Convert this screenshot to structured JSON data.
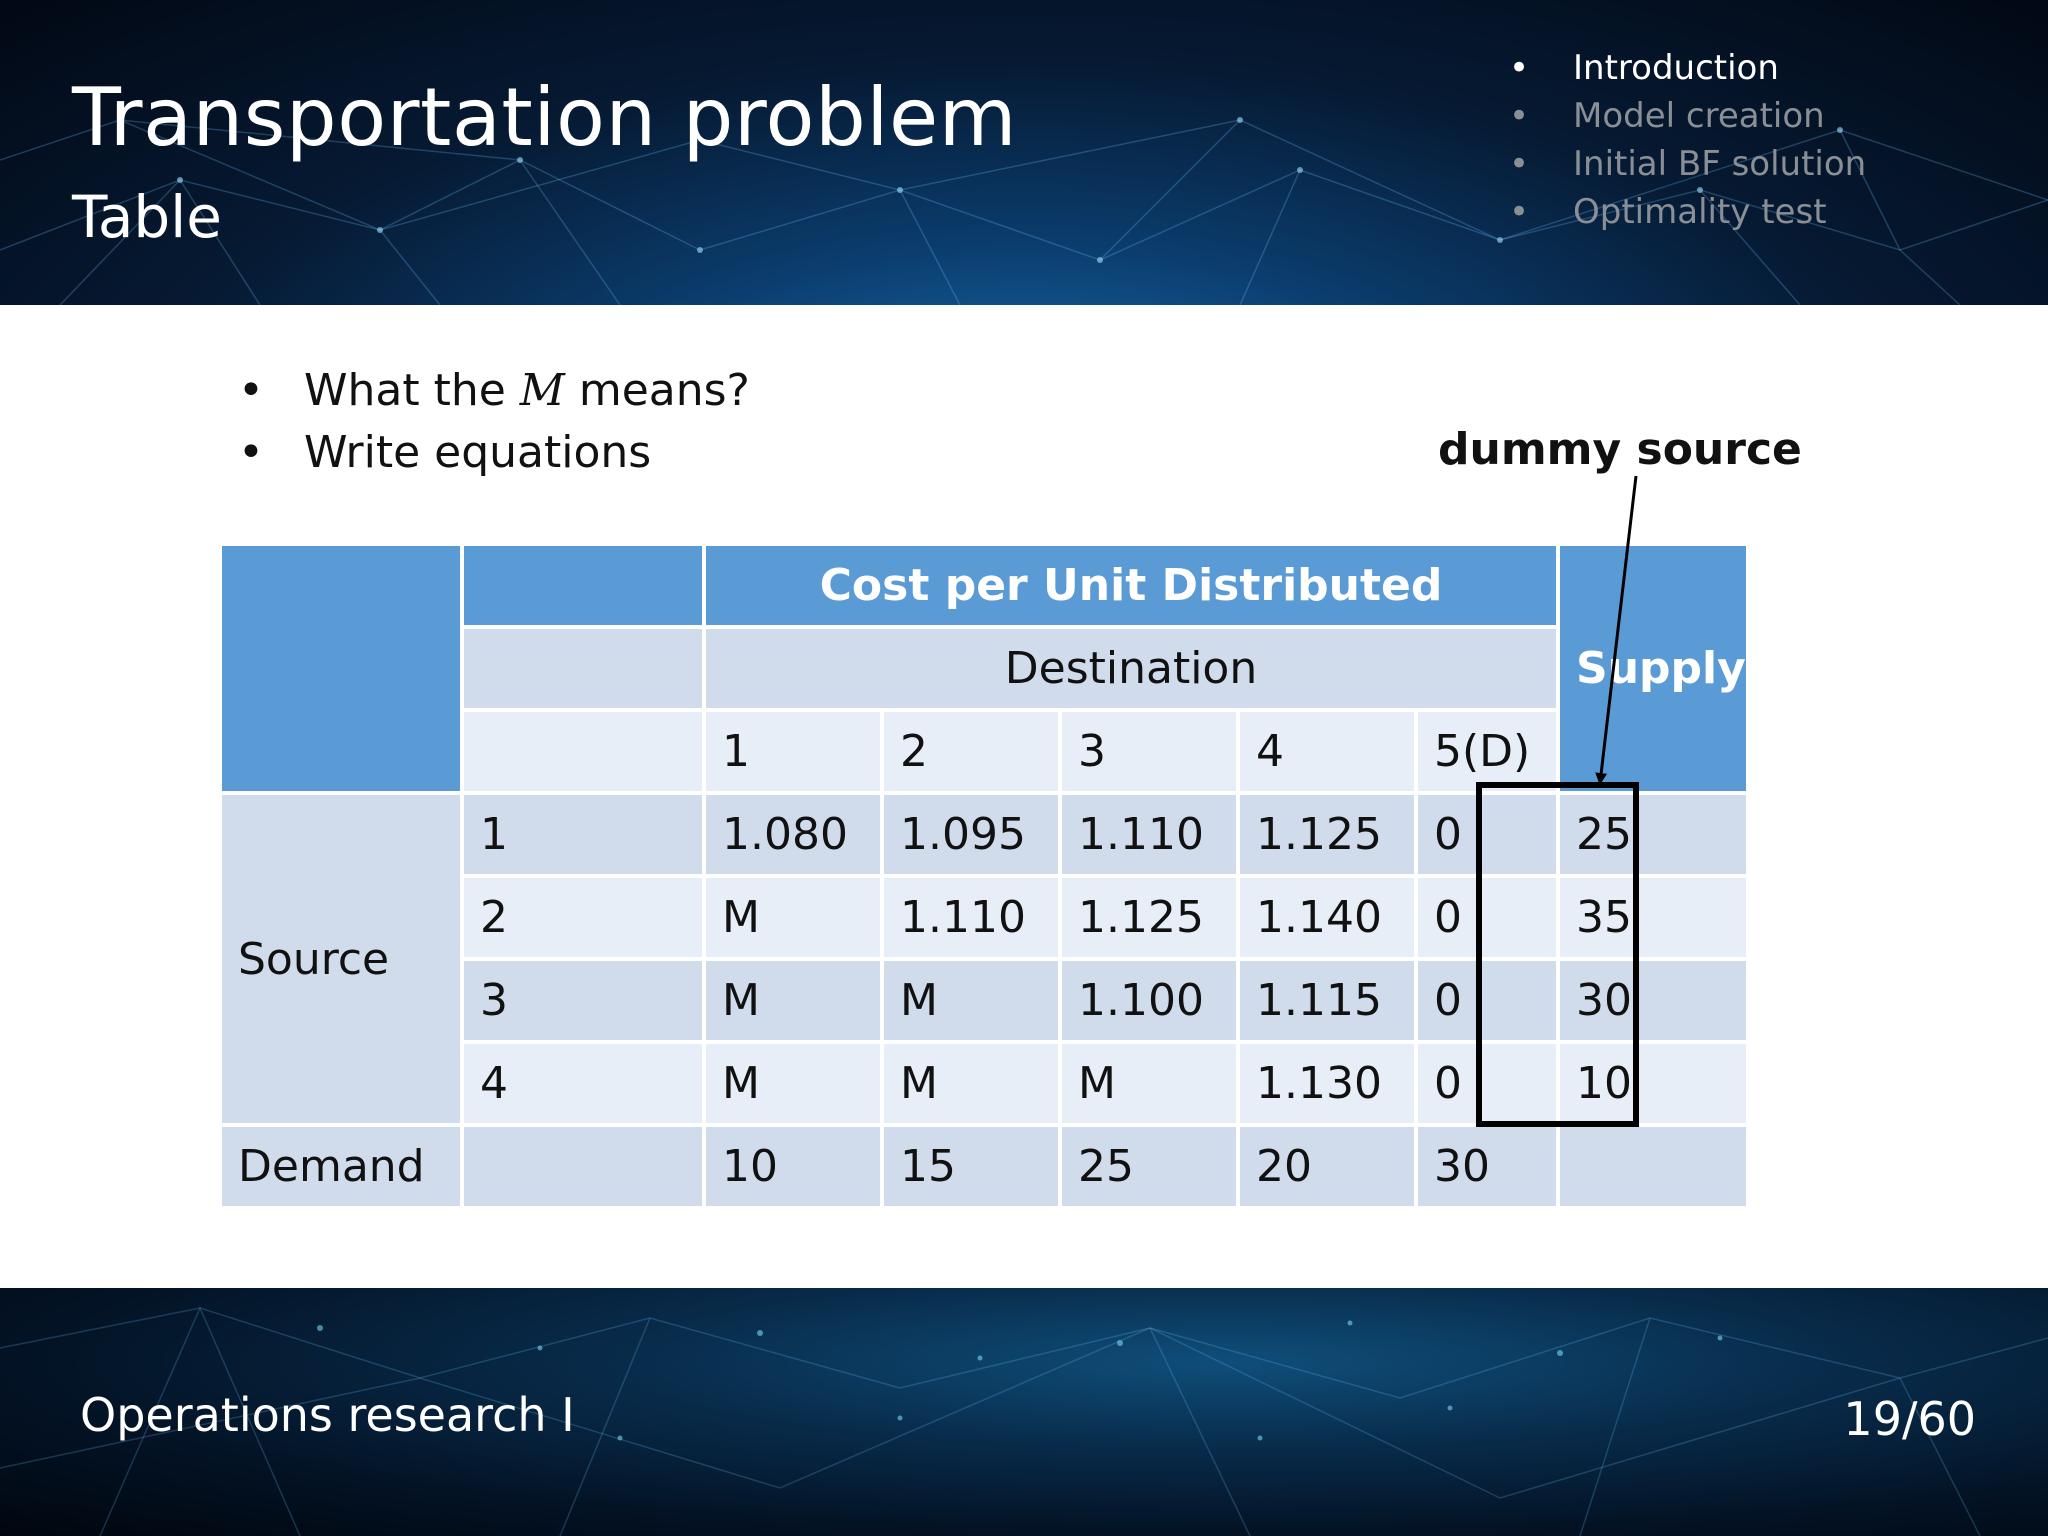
{
  "header": {
    "title": "Transportation problem",
    "subtitle": "Table",
    "nav": [
      "Introduction",
      "Model creation",
      "Initial BF solution",
      "Optimality test"
    ]
  },
  "bullets": {
    "q_before": "What the ",
    "q_var": "M",
    "q_after": " means?",
    "write": "Write equations"
  },
  "annotation": "dummy source",
  "table": {
    "cost_header": "Cost per Unit Distributed",
    "destination": "Destination",
    "supply": "Supply",
    "source": "Source",
    "demand": "Demand",
    "dest_cols": [
      "1",
      "2",
      "3",
      "4",
      "5(D)"
    ],
    "rows": [
      {
        "src": "1",
        "costs": [
          "1.080",
          "1.095",
          "1.110",
          "1.125",
          "0"
        ],
        "supply": "25"
      },
      {
        "src": "2",
        "costs": [
          "M",
          "1.110",
          "1.125",
          "1.140",
          "0"
        ],
        "supply": "35"
      },
      {
        "src": "3",
        "costs": [
          "M",
          "M",
          "1.100",
          "1.115",
          "0"
        ],
        "supply": "30"
      },
      {
        "src": "4",
        "costs": [
          "M",
          "M",
          "M",
          "1.130",
          "0"
        ],
        "supply": "10"
      }
    ],
    "demand_values": [
      "10",
      "15",
      "25",
      "20",
      "30"
    ]
  },
  "footer": {
    "course": "Operations research I",
    "page": "19/60"
  },
  "colors": {
    "header_blue": "#5b9bd5",
    "row_light": "#e8eef7",
    "row_dark": "#d0dcec"
  }
}
